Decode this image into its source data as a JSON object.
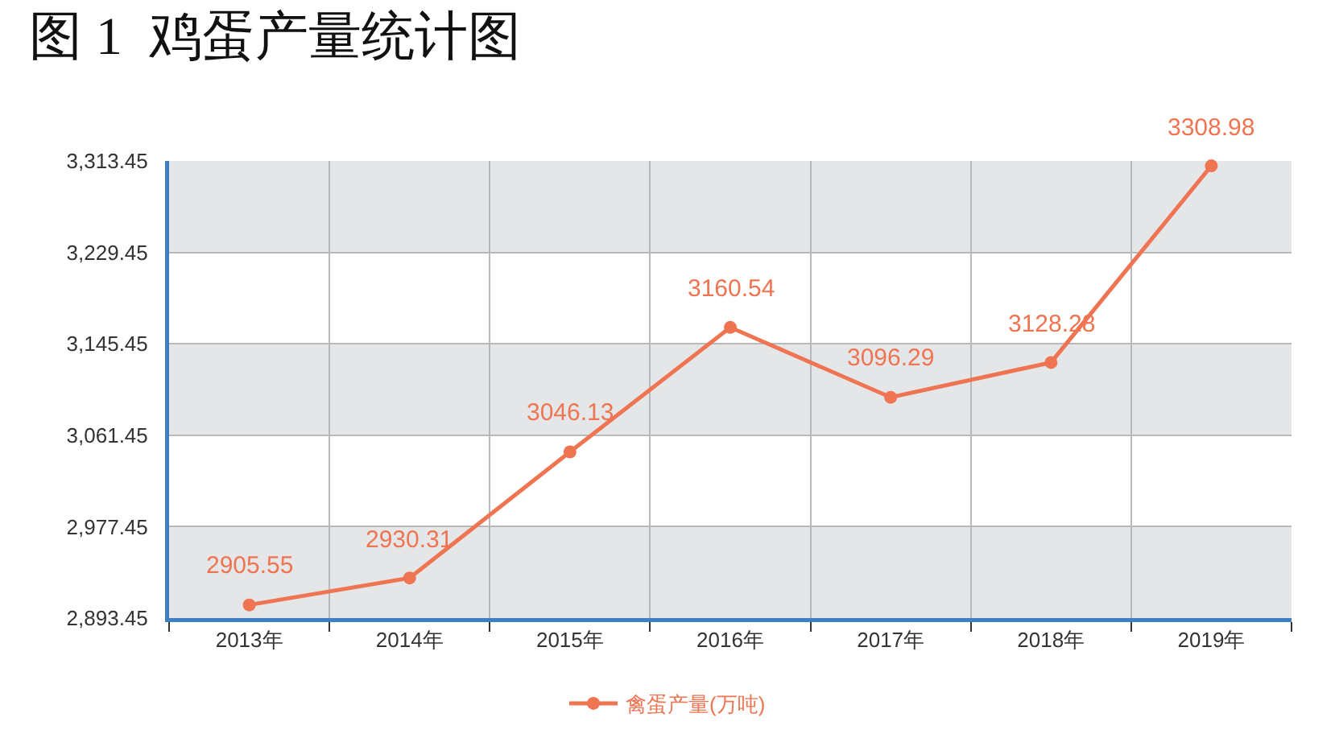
{
  "chart_data": {
    "type": "line",
    "title": "图 1  鸡蛋产量统计图",
    "categories": [
      "2013年",
      "2014年",
      "2015年",
      "2016年",
      "2017年",
      "2018年",
      "2019年"
    ],
    "series": [
      {
        "name": "禽蛋产量(万吨)",
        "color": "#ee7452",
        "values": [
          2905.55,
          2930.31,
          3046.13,
          3160.54,
          3096.29,
          3128.28,
          3308.98
        ]
      }
    ],
    "ylim": [
      2893.45,
      3313.45
    ],
    "yticks": [
      {
        "value": 2893.45,
        "label": "2,893.45"
      },
      {
        "value": 2977.45,
        "label": "2,977.45"
      },
      {
        "value": 3061.45,
        "label": "3,061.45"
      },
      {
        "value": 3145.45,
        "label": "3,145.45"
      },
      {
        "value": 3229.45,
        "label": "3,229.45"
      },
      {
        "value": 3313.45,
        "label": "3,313.45"
      }
    ],
    "bands": [
      {
        "axis": "y",
        "from": 2893.45,
        "to": 2977.45,
        "color": "#e5e6e8"
      },
      {
        "axis": "y",
        "from": 3061.45,
        "to": 3145.45,
        "color": "#e5e6e8"
      },
      {
        "axis": "y",
        "from": 3229.45,
        "to": 3313.45,
        "color": "#e5e6e8"
      }
    ],
    "grid": true,
    "legend": "bottom",
    "marker": "circle",
    "line_style": "solid",
    "data_labels": true
  }
}
